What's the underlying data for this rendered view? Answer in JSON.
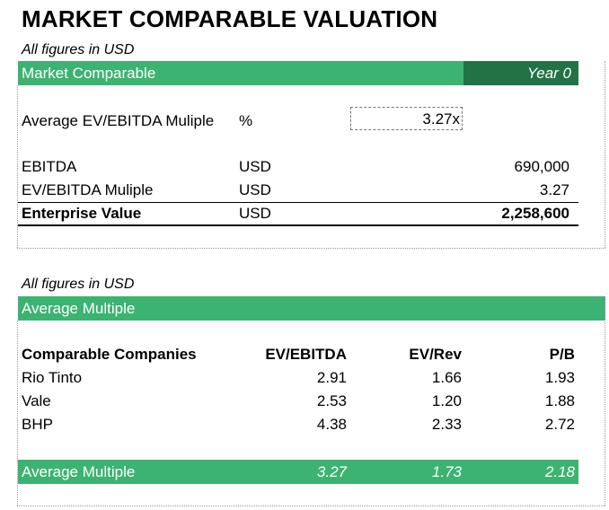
{
  "title": "MARKET COMPARABLE VALUATION",
  "section1": {
    "note": "All figures in USD",
    "header": "Market Comparable",
    "year_label": "Year 0",
    "avg_multiple": {
      "label": "Average EV/EBITDA Muliple",
      "unit": "%",
      "value": "3.27x"
    },
    "rows": [
      {
        "label": "EBITDA",
        "unit": "USD",
        "value": "690,000"
      },
      {
        "label": "EV/EBITDA Muliple",
        "unit": "USD",
        "value": "3.27"
      }
    ],
    "total": {
      "label": "Enterprise Value",
      "unit": "USD",
      "value": "2,258,600"
    }
  },
  "section2": {
    "note": "All figures in USD",
    "header": "Average Multiple",
    "columns": [
      "Comparable Companies",
      "EV/EBITDA",
      "EV/Rev",
      "P/B"
    ],
    "rows": [
      {
        "company": "Rio Tinto",
        "ev_ebitda": "2.91",
        "ev_rev": "1.66",
        "pb": "1.93"
      },
      {
        "company": "Vale",
        "ev_ebitda": "2.53",
        "ev_rev": "1.20",
        "pb": "1.88"
      },
      {
        "company": "BHP",
        "ev_ebitda": "4.38",
        "ev_rev": "2.33",
        "pb": "2.72"
      }
    ],
    "average": {
      "label": "Average Multiple",
      "ev_ebitda": "3.27",
      "ev_rev": "1.73",
      "pb": "2.18"
    }
  },
  "colors": {
    "header_green": "#3cb371",
    "year_green": "#217346",
    "text": "#000000",
    "header_text": "#ffffff"
  }
}
